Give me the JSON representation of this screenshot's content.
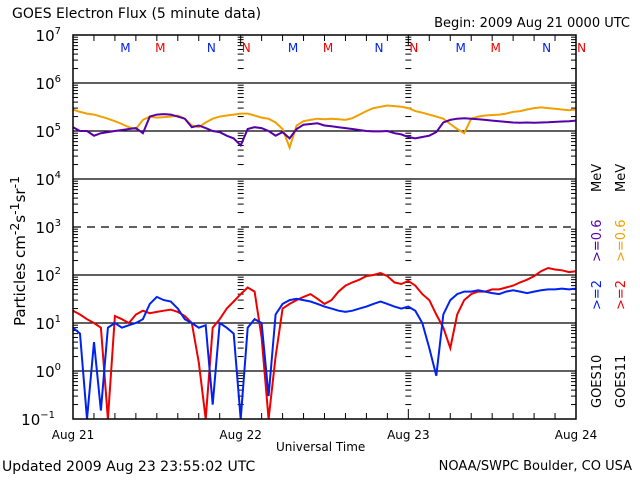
{
  "header": {
    "title": "GOES Electron Flux (5 minute data)",
    "begin": "Begin: 2009 Aug 21 0000 UTC"
  },
  "footer": {
    "updated": "Updated 2009 Aug 23 23:55:02 UTC",
    "credit": "NOAA/SWPC Boulder, CO USA"
  },
  "legend": {
    "goes10": {
      "sat": "GOES10",
      "ge2": ">=2",
      "ge06": ">=0.6",
      "unit": "MeV"
    },
    "goes11": {
      "sat": "GOES11",
      "ge2": ">=2",
      "ge06": ">=0.6",
      "unit": "MeV"
    }
  },
  "colors": {
    "goes10_ge2": "#0022ee",
    "goes11_ge2": "#ee0000",
    "goes10_ge06": "#5500aa",
    "goes11_ge06": "#f0a000",
    "axis": "#000000"
  },
  "chart_data": {
    "type": "line",
    "title": "GOES Electron Flux (5 minute data)",
    "xlabel": "Universal Time",
    "ylabel": "Particles cm⁻²s⁻¹sr⁻¹",
    "yscale": "log",
    "ylim": [
      0.1,
      10000000
    ],
    "xlim": [
      0,
      72
    ],
    "x_unit": "hours since 2009 Aug 21 0000 UTC",
    "x_tick_labels": [
      {
        "x": 0,
        "label": "Aug 21"
      },
      {
        "x": 24,
        "label": "Aug 22"
      },
      {
        "x": 48,
        "label": "Aug 23"
      },
      {
        "x": 72,
        "label": "Aug 24"
      }
    ],
    "y_tick_labels": [
      {
        "exp": -1,
        "label": "10",
        "sup": "−1"
      },
      {
        "exp": 0,
        "label": "10",
        "sup": "0"
      },
      {
        "exp": 1,
        "label": "10",
        "sup": "1"
      },
      {
        "exp": 2,
        "label": "10",
        "sup": "2"
      },
      {
        "exp": 3,
        "label": "10",
        "sup": "3"
      },
      {
        "exp": 4,
        "label": "10",
        "sup": "4"
      },
      {
        "exp": 5,
        "label": "10",
        "sup": "5"
      },
      {
        "exp": 6,
        "label": "10",
        "sup": "6"
      },
      {
        "exp": 7,
        "label": "10",
        "sup": "7"
      }
    ],
    "gridlines_exp": [
      6,
      5,
      4,
      2,
      1,
      0
    ],
    "dashed_gridline_exp": 3,
    "markers": [
      {
        "x": 7.5,
        "label": "M",
        "color": "#0022ee"
      },
      {
        "x": 12.5,
        "label": "M",
        "color": "#ee0000"
      },
      {
        "x": 19.8,
        "label": "N",
        "color": "#0022ee"
      },
      {
        "x": 24.8,
        "label": "N",
        "color": "#ee0000"
      },
      {
        "x": 31.5,
        "label": "M",
        "color": "#0022ee"
      },
      {
        "x": 36.5,
        "label": "M",
        "color": "#ee0000"
      },
      {
        "x": 43.8,
        "label": "N",
        "color": "#0022ee"
      },
      {
        "x": 48.8,
        "label": "N",
        "color": "#ee0000"
      },
      {
        "x": 55.5,
        "label": "M",
        "color": "#0022ee"
      },
      {
        "x": 60.5,
        "label": "M",
        "color": "#ee0000"
      },
      {
        "x": 67.8,
        "label": "N",
        "color": "#0022ee"
      },
      {
        "x": 72.8,
        "label": "N",
        "color": "#ee0000"
      }
    ],
    "series": [
      {
        "name": "GOES11 >=0.6 MeV",
        "color": "#f0a000",
        "x": [
          0,
          1,
          2,
          3,
          4,
          5,
          6,
          7,
          8,
          9,
          10,
          11,
          12,
          13,
          14,
          15,
          16,
          17,
          18,
          19,
          20,
          21,
          22,
          23,
          24,
          25,
          26,
          27,
          28,
          29,
          30,
          31,
          32,
          33,
          34,
          35,
          36,
          37,
          38,
          39,
          40,
          41,
          42,
          43,
          44,
          45,
          46,
          47,
          48,
          49,
          50,
          51,
          52,
          53,
          54,
          55,
          56,
          57,
          58,
          59,
          60,
          61,
          62,
          63,
          64,
          65,
          66,
          67,
          68,
          69,
          70,
          71,
          72
        ],
        "y": [
          280000,
          250000,
          230000,
          220000,
          200000,
          180000,
          160000,
          140000,
          120000,
          110000,
          170000,
          200000,
          190000,
          195000,
          200000,
          210000,
          180000,
          130000,
          120000,
          150000,
          180000,
          200000,
          210000,
          220000,
          230000,
          230000,
          210000,
          190000,
          180000,
          150000,
          110000,
          45000,
          130000,
          160000,
          170000,
          180000,
          175000,
          180000,
          175000,
          170000,
          185000,
          220000,
          260000,
          300000,
          320000,
          340000,
          330000,
          320000,
          300000,
          260000,
          240000,
          220000,
          200000,
          180000,
          140000,
          110000,
          90000,
          180000,
          200000,
          210000,
          215000,
          220000,
          230000,
          250000,
          260000,
          280000,
          300000,
          310000,
          300000,
          290000,
          280000,
          270000,
          280000
        ]
      },
      {
        "name": "GOES10 >=0.6 MeV",
        "color": "#5500aa",
        "x": [
          0,
          1,
          2,
          3,
          4,
          5,
          6,
          7,
          8,
          9,
          10,
          11,
          12,
          13,
          14,
          15,
          16,
          17,
          18,
          19,
          20,
          21,
          22,
          23,
          24,
          25,
          26,
          27,
          28,
          29,
          30,
          31,
          32,
          33,
          34,
          35,
          36,
          37,
          38,
          39,
          40,
          41,
          42,
          43,
          44,
          45,
          46,
          47,
          48,
          49,
          50,
          51,
          52,
          53,
          54,
          55,
          56,
          57,
          58,
          59,
          60,
          61,
          62,
          63,
          64,
          65,
          66,
          67,
          68,
          69,
          70,
          71,
          72
        ],
        "y": [
          120000,
          100000,
          100000,
          80000,
          90000,
          95000,
          100000,
          105000,
          110000,
          115000,
          90000,
          200000,
          220000,
          225000,
          220000,
          200000,
          180000,
          120000,
          130000,
          115000,
          100000,
          95000,
          80000,
          70000,
          50000,
          110000,
          120000,
          115000,
          100000,
          80000,
          95000,
          70000,
          110000,
          135000,
          140000,
          145000,
          130000,
          125000,
          120000,
          115000,
          110000,
          105000,
          100000,
          98000,
          98000,
          100000,
          90000,
          85000,
          75000,
          70000,
          75000,
          80000,
          95000,
          150000,
          170000,
          180000,
          185000,
          180000,
          175000,
          170000,
          165000,
          160000,
          155000,
          150000,
          148000,
          150000,
          148000,
          150000,
          152000,
          155000,
          158000,
          160000,
          165000
        ]
      },
      {
        "name": "GOES11 >=2 MeV",
        "color": "#ee0000",
        "x": [
          0,
          1,
          2,
          3,
          4,
          5,
          6,
          7,
          8,
          9,
          10,
          11,
          12,
          13,
          14,
          15,
          16,
          17,
          18,
          19,
          20,
          21,
          22,
          23,
          24,
          25,
          26,
          27,
          28,
          29,
          30,
          31,
          32,
          33,
          34,
          35,
          36,
          37,
          38,
          39,
          40,
          41,
          42,
          43,
          44,
          45,
          46,
          47,
          48,
          49,
          50,
          51,
          52,
          53,
          54,
          55,
          56,
          57,
          58,
          59,
          60,
          61,
          62,
          63,
          64,
          65,
          66,
          67,
          68,
          69,
          70,
          71,
          72
        ],
        "y": [
          18,
          15,
          12,
          10,
          8,
          0.1,
          14,
          12,
          10,
          15,
          18,
          16,
          17,
          18,
          19,
          17,
          14,
          10,
          1.5,
          0.1,
          8,
          12,
          20,
          28,
          40,
          55,
          45,
          5,
          0.1,
          2,
          20,
          25,
          30,
          35,
          40,
          32,
          25,
          30,
          45,
          60,
          70,
          80,
          95,
          100,
          110,
          95,
          70,
          65,
          75,
          60,
          40,
          30,
          15,
          8,
          3,
          15,
          30,
          40,
          45,
          45,
          50,
          50,
          55,
          60,
          70,
          80,
          95,
          120,
          140,
          130,
          125,
          115,
          120
        ]
      },
      {
        "name": "GOES10 >=2 MeV",
        "color": "#0022ee",
        "x": [
          0,
          1,
          2,
          3,
          4,
          5,
          6,
          7,
          8,
          9,
          10,
          11,
          12,
          13,
          14,
          15,
          16,
          17,
          18,
          19,
          20,
          21,
          22,
          23,
          24,
          25,
          26,
          27,
          28,
          29,
          30,
          31,
          32,
          33,
          34,
          35,
          36,
          37,
          38,
          39,
          40,
          41,
          42,
          43,
          44,
          45,
          46,
          47,
          48,
          49,
          50,
          51,
          52,
          53,
          54,
          55,
          56,
          57,
          58,
          59,
          60,
          61,
          62,
          63,
          64,
          65,
          66,
          67,
          68,
          69,
          70,
          71,
          72
        ],
        "y": [
          8,
          6,
          0.1,
          4,
          0.15,
          8,
          10,
          8,
          9,
          10,
          12,
          25,
          35,
          30,
          28,
          20,
          12,
          10,
          8,
          9,
          0.2,
          10,
          8,
          6,
          0.1,
          8,
          12,
          10,
          0.3,
          15,
          25,
          30,
          32,
          30,
          28,
          25,
          22,
          20,
          18,
          17,
          18,
          20,
          22,
          25,
          28,
          25,
          22,
          20,
          22,
          18,
          10,
          3,
          0.8,
          15,
          30,
          40,
          45,
          45,
          48,
          45,
          42,
          40,
          45,
          48,
          45,
          42,
          45,
          48,
          50,
          50,
          52,
          50,
          52
        ]
      }
    ]
  }
}
